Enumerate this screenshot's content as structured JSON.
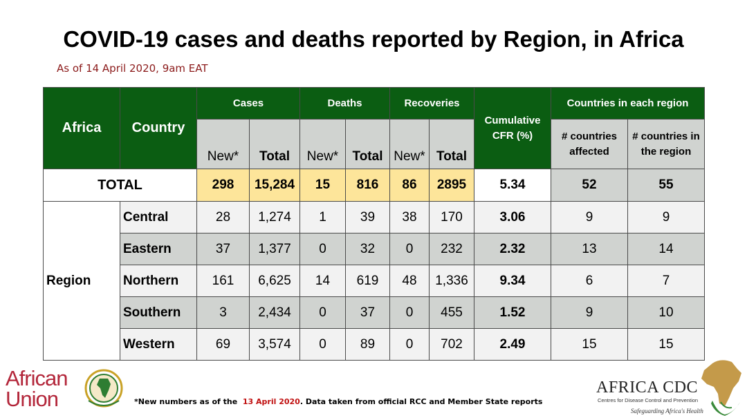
{
  "title": "COVID-19 cases and deaths reported by Region, in Africa",
  "subtitle": "As of 14 April 2020, 9am EAT",
  "chart_data": {
    "type": "table",
    "header": {
      "africa": "Africa",
      "country": "Country",
      "cases": "Cases",
      "deaths": "Deaths",
      "recoveries": "Recoveries",
      "cfr": "Cumulative CFR (%)",
      "countries_group": "Countries in each region",
      "new": "New*",
      "total": "Total",
      "countries_affected": "# countries affected",
      "countries_in_region": "# countries in the region"
    },
    "total_row": {
      "label": "TOTAL",
      "cases_new": "298",
      "cases_total": "15,284",
      "deaths_new": "15",
      "deaths_total": "816",
      "recoveries_new": "86",
      "recoveries_total": "2895",
      "cfr": "5.34",
      "countries_affected": "52",
      "countries_in_region": "55"
    },
    "region_label": "Region",
    "rows": [
      {
        "region": "Central",
        "cases_new": "28",
        "cases_total": "1,274",
        "deaths_new": "1",
        "deaths_total": "39",
        "recoveries_new": "38",
        "recoveries_total": "170",
        "cfr": "3.06",
        "countries_affected": "9",
        "countries_in_region": "9"
      },
      {
        "region": "Eastern",
        "cases_new": "37",
        "cases_total": "1,377",
        "deaths_new": "0",
        "deaths_total": "32",
        "recoveries_new": "0",
        "recoveries_total": "232",
        "cfr": "2.32",
        "countries_affected": "13",
        "countries_in_region": "14"
      },
      {
        "region": "Northern",
        "cases_new": "161",
        "cases_total": "6,625",
        "deaths_new": "14",
        "deaths_total": "619",
        "recoveries_new": "48",
        "recoveries_total": "1,336",
        "cfr": "9.34",
        "countries_affected": "6",
        "countries_in_region": "7"
      },
      {
        "region": "Southern",
        "cases_new": "3",
        "cases_total": "2,434",
        "deaths_new": "0",
        "deaths_total": "37",
        "recoveries_new": "0",
        "recoveries_total": "455",
        "cfr": "1.52",
        "countries_affected": "9",
        "countries_in_region": "10"
      },
      {
        "region": "Western",
        "cases_new": "69",
        "cases_total": "3,574",
        "deaths_new": "0",
        "deaths_total": "89",
        "recoveries_new": "0",
        "recoveries_total": "702",
        "cfr": "2.49",
        "countries_affected": "15",
        "countries_in_region": "15"
      }
    ]
  },
  "footnote": {
    "prefix": "*New numbers as of the",
    "date": "13  April 2020",
    "suffix": ". Data taken from official RCC and Member State reports"
  },
  "logos": {
    "au_line1": "African",
    "au_line2": "Union",
    "cdc_name": "AFRICA CDC",
    "cdc_sub": "Centres for Disease Control and Prevention",
    "cdc_tag": "Safeguarding Africa's Health"
  },
  "colors": {
    "header_green": "#0b5d12",
    "subheader_gray": "#d0d3d0",
    "total_yellow": "#fde59a",
    "subtitle_red": "#8b1a1a",
    "footnote_red": "#c01010",
    "au_red": "#b3263a"
  }
}
